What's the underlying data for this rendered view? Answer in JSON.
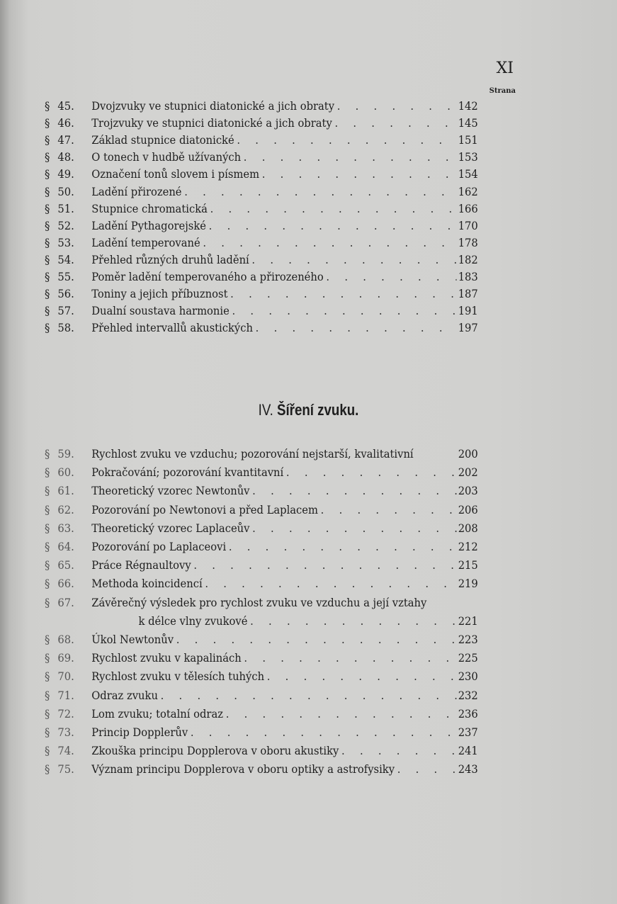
{
  "page_number": "XI",
  "column_header": "Strana",
  "section_heading": {
    "numeral": "IV.",
    "title": "Šíření zvuku."
  },
  "entries_part1": [
    {
      "sec": "§",
      "num": "45.",
      "title": "Dvojzvuky ve stupnici diatonické a jich obraty",
      "page": "142"
    },
    {
      "sec": "§",
      "num": "46.",
      "title": "Trojzvuky ve stupnici diatonické a jich obraty",
      "page": "145"
    },
    {
      "sec": "§",
      "num": "47.",
      "title": "Základ stupnice diatonické",
      "page": "151"
    },
    {
      "sec": "§",
      "num": "48.",
      "title": "O tonech v hudbě užívaných",
      "page": "153"
    },
    {
      "sec": "§",
      "num": "49.",
      "title": "Označení tonů slovem i písmem",
      "page": "154"
    },
    {
      "sec": "§",
      "num": "50.",
      "title": "Ladění přirozené",
      "page": "162"
    },
    {
      "sec": "§",
      "num": "51.",
      "title": "Stupnice chromatická",
      "page": "166"
    },
    {
      "sec": "§",
      "num": "52.",
      "title": "Ladění Pythagorejské",
      "page": "170"
    },
    {
      "sec": "§",
      "num": "53.",
      "title": "Ladění temperované",
      "page": "178"
    },
    {
      "sec": "§",
      "num": "54.",
      "title": "Přehled různých druhů ladění",
      "page": "182"
    },
    {
      "sec": "§",
      "num": "55.",
      "title": "Poměr ladění temperovaného a přirozeného",
      "page": "183"
    },
    {
      "sec": "§",
      "num": "56.",
      "title": "Toniny a jejich příbuznost",
      "page": "187"
    },
    {
      "sec": "§",
      "num": "57.",
      "title": "Dualní soustava harmonie",
      "page": "191"
    },
    {
      "sec": "§",
      "num": "58.",
      "title": "Přehled intervallů akustických",
      "page": "197"
    }
  ],
  "entries_part2": [
    {
      "sec": "§",
      "num": "59.",
      "title": "Rychlost zvuku ve vzduchu; pozorování nejstarší, kvalitativní",
      "page": "200",
      "noleader": true
    },
    {
      "sec": "§",
      "num": "60.",
      "title": "Pokračování; pozorování kvantitavní",
      "page": "202"
    },
    {
      "sec": "§",
      "num": "61.",
      "title": "Theoretický vzorec Newtonův",
      "page": "203"
    },
    {
      "sec": "§",
      "num": "62.",
      "title": "Pozorování po Newtonovi a před Laplacem",
      "page": "206"
    },
    {
      "sec": "§",
      "num": "63.",
      "title": "Theoretický vzorec Laplaceův",
      "page": "208"
    },
    {
      "sec": "§",
      "num": "64.",
      "title": "Pozorování po Laplaceovi",
      "page": "212"
    },
    {
      "sec": "§",
      "num": "65.",
      "title": "Práce Régnaultovy",
      "page": "215"
    },
    {
      "sec": "§",
      "num": "66.",
      "title": "Methoda koincidencí",
      "page": "219"
    },
    {
      "sec": "§",
      "num": "67.",
      "title": "Závěrečný výsledek pro rychlost zvuku ve vzduchu a její vztahy",
      "page": "",
      "noleader": true
    },
    {
      "sec": "",
      "num": "",
      "title": "k délce vlny zvukové",
      "page": "221",
      "cont": true
    },
    {
      "sec": "§",
      "num": "68.",
      "title": "Úkol Newtonův",
      "page": "223"
    },
    {
      "sec": "§",
      "num": "69.",
      "title": "Rychlost zvuku v kapalinách",
      "page": "225"
    },
    {
      "sec": "§",
      "num": "70.",
      "title": "Rychlost zvuku v tělesích tuhých",
      "page": "230"
    },
    {
      "sec": "§",
      "num": "71.",
      "title": "Odraz zvuku",
      "page": "232"
    },
    {
      "sec": "§",
      "num": "72.",
      "title": "Lom zvuku; totalní odraz",
      "page": "236"
    },
    {
      "sec": "§",
      "num": "73.",
      "title": "Princip Dopplerův",
      "page": "237"
    },
    {
      "sec": "§",
      "num": "74.",
      "title": "Zkouška principu Dopplerova v oboru akustiky",
      "page": "241"
    },
    {
      "sec": "§",
      "num": "75.",
      "title": "Význam principu Dopplerova v oboru optiky a astrofysiky",
      "page": "243"
    }
  ]
}
